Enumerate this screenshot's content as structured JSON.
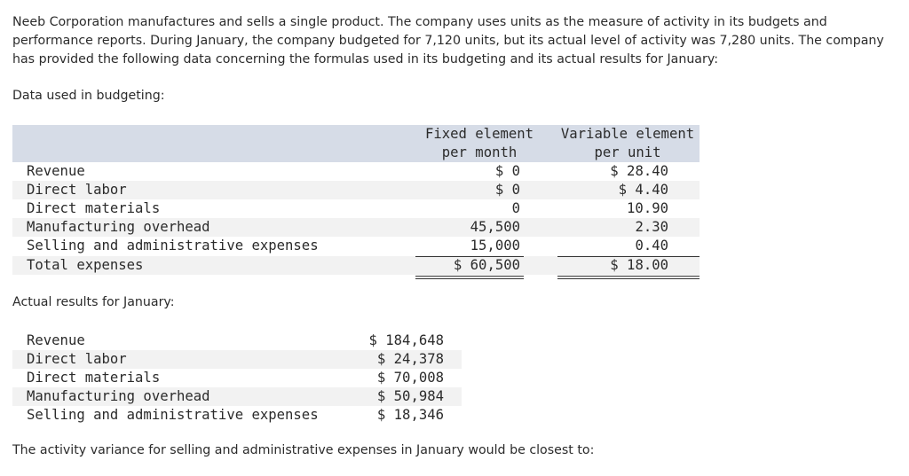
{
  "problem": {
    "intro": "Neeb Corporation manufactures and sells a single product. The company uses units as the measure of activity in its budgets and performance reports. During January, the company budgeted for 7,120 units, but its actual level of activity was 7,280 units. The company has provided the following data concerning the formulas used in its budgeting and its actual results for January:",
    "budget_heading": "Data used in budgeting:",
    "budget_table": {
      "column_headers": [
        [
          "Fixed element",
          "per month"
        ],
        [
          "Variable element",
          "per unit"
        ]
      ],
      "rows": [
        [
          "Revenue",
          "$ 0",
          "$ 28.40"
        ],
        [
          "Direct labor",
          "$ 0",
          "$ 4.40"
        ],
        [
          "Direct materials",
          "0",
          "10.90"
        ],
        [
          "Manufacturing overhead",
          "45,500",
          "2.30"
        ],
        [
          "Selling and administrative expenses",
          "15,000",
          "0.40"
        ],
        [
          "Total expenses",
          "$ 60,500",
          "$ 18.00"
        ]
      ]
    },
    "actual_heading": "Actual results for January:",
    "actual_table": {
      "rows": [
        [
          "Revenue",
          "$ 184,648"
        ],
        [
          "Direct labor",
          "$ 24,378"
        ],
        [
          "Direct materials",
          "$ 70,008"
        ],
        [
          "Manufacturing overhead",
          "$ 50,984"
        ],
        [
          "Selling and administrative expenses",
          "$ 18,346"
        ]
      ]
    },
    "question": "The activity variance for selling and administrative expenses in January would be closest to:"
  }
}
